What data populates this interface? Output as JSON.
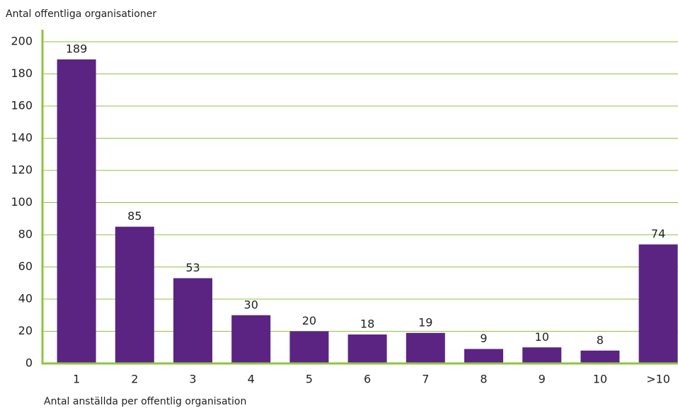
{
  "chart_data": {
    "type": "bar",
    "y_axis_label": "Antal offentliga organisationer",
    "x_axis_label": "Antal anställda per offentlig organisation",
    "categories": [
      "1",
      "2",
      "3",
      "4",
      "5",
      "6",
      "7",
      "8",
      "9",
      "10",
      ">10"
    ],
    "values": [
      189,
      85,
      53,
      30,
      20,
      18,
      19,
      9,
      10,
      8,
      74
    ],
    "color": "#5b2483",
    "ylim": [
      0,
      200
    ],
    "yticks": [
      0,
      20,
      40,
      60,
      80,
      100,
      120,
      140,
      160,
      180,
      200
    ],
    "grid": true,
    "grid_color": "#8dc63f"
  }
}
